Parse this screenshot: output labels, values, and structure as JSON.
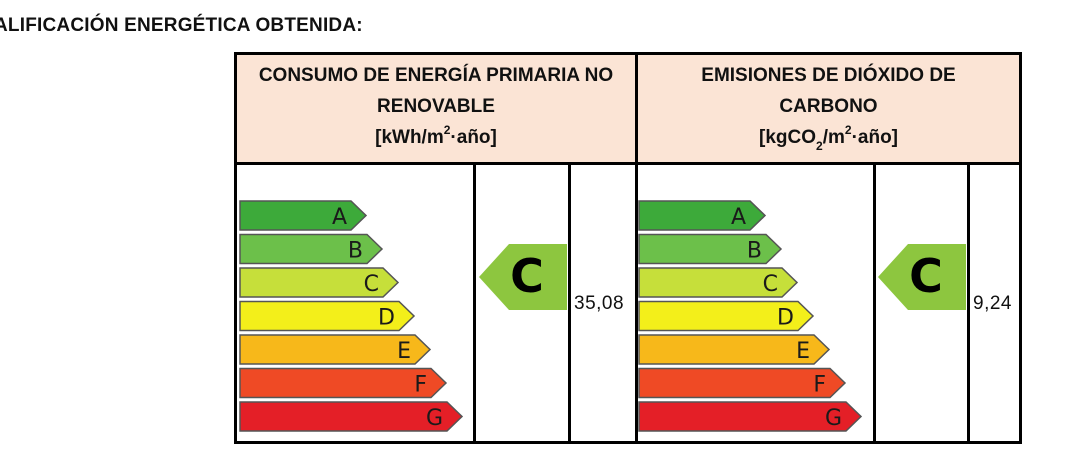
{
  "section_title": "ALIFICACIÓN ENERGÉTICA OBTENIDA:",
  "colors": {
    "header_bg": "#fbe4d5",
    "A": "#3daa3a",
    "B": "#6cc04a",
    "C": "#c6df3a",
    "D": "#f3ef1a",
    "E": "#f7b81a",
    "F": "#ef4a25",
    "G": "#e41f27",
    "rating_arrow": "#8dc63f"
  },
  "scale_letters": [
    "A",
    "B",
    "C",
    "D",
    "E",
    "F",
    "G"
  ],
  "consumo": {
    "title_line1": "CONSUMO DE ENERGÍA PRIMARIA NO",
    "title_line2": "RENOVABLE",
    "units_pre": "[kWh/m",
    "units_sup": "2",
    "units_post": "·año]",
    "rating": "C",
    "value": "35,08"
  },
  "emisiones": {
    "title_line1": "EMISIONES DE DIÓXIDO DE",
    "title_line2": "CARBONO",
    "units_pre": "[kgCO",
    "units_sub": "2",
    "units_mid": "/m",
    "units_sup": "2",
    "units_post": "·año]",
    "rating": "C",
    "value": "9,24"
  }
}
